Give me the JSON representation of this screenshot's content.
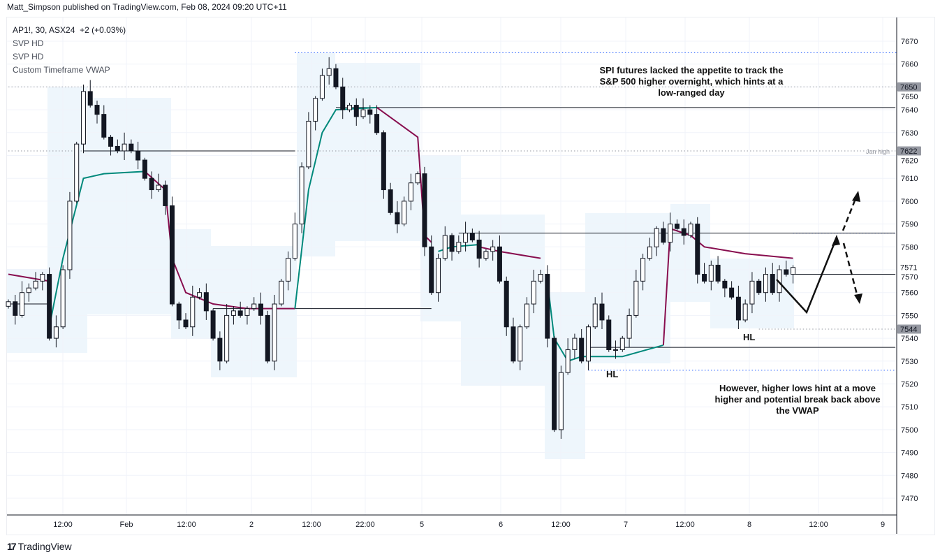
{
  "header": {
    "published": "Matt_Simpson published on TradingView.com, Feb 08, 2024 09:20 UTC+11"
  },
  "legend": {
    "symbol": "AP1!, 30, ASX24",
    "change": "+2 (+0.03%)",
    "indicators": [
      "SVP HD",
      "SVP HD",
      "Custom Timeframe VWAP"
    ]
  },
  "annotations": {
    "top": "SPI futures lacked the appetite to track the S&P 500 higher overnight, which hints at a low-ranged day",
    "bottom": "However, higher lows hint at a move higher and potential break back above the VWAP",
    "hl1": "HL",
    "hl2": "HL",
    "jan_high": "Jan high"
  },
  "footer": {
    "brand": "TradingView"
  },
  "colors": {
    "up": "#ffffff",
    "down": "#131722",
    "vwap_above": "#880e4f",
    "vwap_below": "#00897b",
    "profile_blue": "#2962ff",
    "profile_gray": "#9598a1",
    "session_bg": "#e3f2fd"
  },
  "chart_data": {
    "type": "candlestick",
    "interval": "30",
    "ylim": [
      7462,
      7680
    ],
    "y_ticks": [
      7470,
      7480,
      7490,
      7500,
      7510,
      7520,
      7530,
      7540,
      7550,
      7560,
      7570,
      7580,
      7590,
      7600,
      7610,
      7620,
      7630,
      7640,
      7650,
      7660,
      7670
    ],
    "x_ticks": [
      "12:00",
      "Feb",
      "12:00",
      "2",
      "12:00",
      "22:00",
      "5",
      "6",
      "12:00",
      "7",
      "12:00",
      "8",
      "12:00",
      "9"
    ],
    "price_tags": [
      {
        "value": 7650,
        "label": "7650"
      },
      {
        "value": 7622,
        "label": "7622"
      },
      {
        "value": 7571,
        "label": "7571"
      },
      {
        "value": 7544,
        "label": "7544"
      }
    ],
    "closes": [
      7556,
      7550,
      7560,
      7562,
      7565,
      7568,
      7540,
      7545,
      7570,
      7600,
      7625,
      7648,
      7642,
      7638,
      7628,
      7624,
      7622,
      7625,
      7622,
      7618,
      7610,
      7605,
      7607,
      7598,
      7555,
      7548,
      7545,
      7558,
      7560,
      7552,
      7540,
      7530,
      7550,
      7552,
      7550,
      7553,
      7555,
      7550,
      7530,
      7555,
      7565,
      7575,
      7590,
      7615,
      7635,
      7645,
      7655,
      7658,
      7650,
      7640,
      7642,
      7637,
      7640,
      7638,
      7630,
      7605,
      7595,
      7590,
      7600,
      7608,
      7612,
      7580,
      7560,
      7575,
      7585,
      7578,
      7582,
      7586,
      7583,
      7575,
      7578,
      7580,
      7565,
      7545,
      7530,
      7545,
      7555,
      7565,
      7568,
      7540,
      7500,
      7525,
      7535,
      7540,
      7530,
      7545,
      7555,
      7548,
      7535,
      7535,
      7540,
      7550,
      7565,
      7575,
      7580,
      7588,
      7582,
      7590,
      7588,
      7585,
      7590,
      7568,
      7565,
      7572,
      7565,
      7562,
      7558,
      7548,
      7555,
      7565,
      7560,
      7568,
      7560,
      7570,
      7568,
      7571
    ],
    "vwap_segments": [
      {
        "side": "above",
        "points": [
          [
            0,
            7568
          ],
          [
            6,
            7565
          ]
        ]
      },
      {
        "side": "below",
        "points": [
          [
            6,
            7545
          ],
          [
            8,
            7575
          ],
          [
            11,
            7610
          ],
          [
            14,
            7612
          ],
          [
            20,
            7613
          ]
        ]
      },
      {
        "side": "above",
        "points": [
          [
            20,
            7613
          ],
          [
            23,
            7605
          ],
          [
            24,
            7575
          ],
          [
            26,
            7560
          ],
          [
            30,
            7555
          ],
          [
            35,
            7553
          ],
          [
            42,
            7553
          ]
        ]
      },
      {
        "side": "below",
        "points": [
          [
            42,
            7553
          ],
          [
            44,
            7605
          ],
          [
            46,
            7630
          ],
          [
            48,
            7640
          ],
          [
            54,
            7641
          ]
        ]
      },
      {
        "side": "above",
        "points": [
          [
            54,
            7641
          ],
          [
            60,
            7628
          ],
          [
            61,
            7585
          ],
          [
            62,
            7582
          ]
        ]
      },
      {
        "side": "below",
        "points": [
          [
            63,
            7578
          ],
          [
            65,
            7580
          ],
          [
            69,
            7581
          ]
        ]
      },
      {
        "side": "above",
        "points": [
          [
            69,
            7580
          ],
          [
            72,
            7578
          ],
          [
            78,
            7575
          ]
        ]
      },
      {
        "side": "below",
        "points": [
          [
            79,
            7565
          ],
          [
            80,
            7540
          ],
          [
            82,
            7530
          ],
          [
            84,
            7532
          ],
          [
            90,
            7532
          ],
          [
            96,
            7537
          ]
        ]
      },
      {
        "side": "above",
        "points": [
          [
            96,
            7537
          ],
          [
            97,
            7588
          ],
          [
            100,
            7585
          ],
          [
            102,
            7580
          ],
          [
            108,
            7577
          ],
          [
            115,
            7575
          ]
        ]
      }
    ],
    "levels": [
      {
        "value": 7555,
        "from": 0,
        "to": 6
      },
      {
        "value": 7622,
        "from": 11,
        "to": 42
      },
      {
        "value": 7553,
        "from": 30,
        "to": 62
      },
      {
        "value": 7641,
        "from": 48,
        "to": 130
      },
      {
        "value": 7586,
        "from": 66,
        "to": 130
      },
      {
        "value": 7568,
        "from": 115,
        "to": 130
      },
      {
        "value": 7536,
        "from": 85,
        "to": 130
      }
    ],
    "dotted_levels": [
      {
        "value": 7665,
        "from": 42,
        "color": "blue"
      },
      {
        "value": 7650,
        "from": 0,
        "color": "gray"
      },
      {
        "value": 7622,
        "from": 0,
        "color": "gray"
      },
      {
        "value": 7586,
        "from": 115,
        "color": "blue"
      },
      {
        "value": 7544,
        "from": 110,
        "color": "gray"
      },
      {
        "value": 7526,
        "from": 85,
        "color": "blue"
      }
    ]
  }
}
